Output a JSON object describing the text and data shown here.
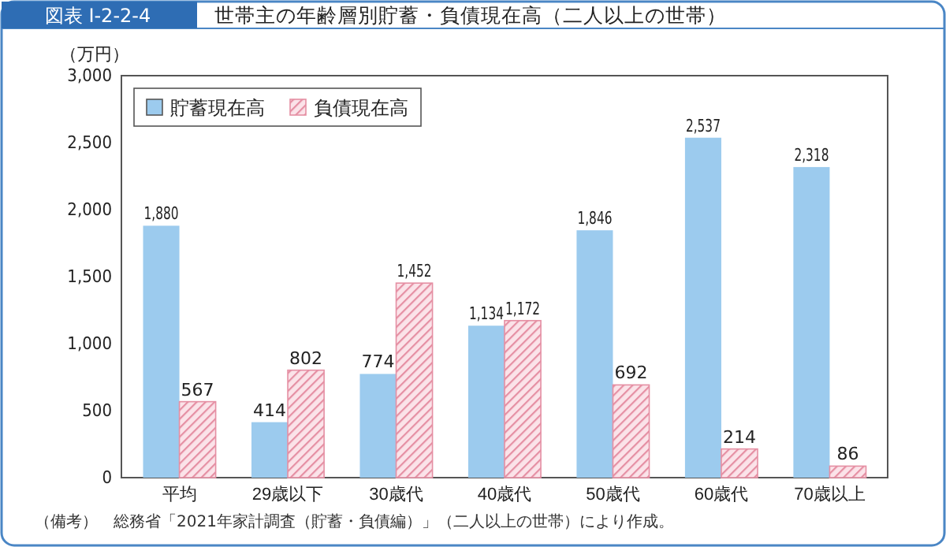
{
  "chart_data": {
    "type": "bar",
    "title": "世帯主の年齢層別貯蓄・負債現在高（二人以上の世帯）",
    "subtitle": "図表 I-2-2-4",
    "ylabel": "（万円）",
    "categories": [
      "平均",
      "29歳以下",
      "30歳代",
      "40歳代",
      "50歳代",
      "60歳代",
      "70歳以上"
    ],
    "series": [
      {
        "name": "貯蓄現在高",
        "color": "#9ccbee",
        "values": [
          1880,
          414,
          774,
          1134,
          1846,
          2537,
          2318
        ],
        "value_labels": [
          "1,880",
          "414",
          "774",
          "1,134",
          "1,846",
          "2,537",
          "2,318"
        ]
      },
      {
        "name": "負債現在高",
        "color": "#e58fa3",
        "values": [
          567,
          802,
          1452,
          1172,
          692,
          214,
          86
        ],
        "value_labels": [
          "567",
          "802",
          "1,452",
          "1,172",
          "692",
          "214",
          "86"
        ]
      }
    ],
    "ylim": [
      0,
      3000
    ],
    "yticks": [
      0,
      {
        "value": 500,
        "label": "500"
      },
      {
        "value": 1000,
        "label": "1,000"
      },
      {
        "value": 1500,
        "label": "1,500"
      },
      {
        "value": 2000,
        "label": "2,000"
      },
      {
        "value": 2500,
        "label": "2,500"
      },
      {
        "value": 3000,
        "label": "3,000"
      }
    ],
    "grid": false,
    "legend": "top left",
    "annotations": [
      "（備考）　総務省「2021年家計調査（貯蓄・負債編）」（二人以上の世帯）により作成。"
    ]
  }
}
